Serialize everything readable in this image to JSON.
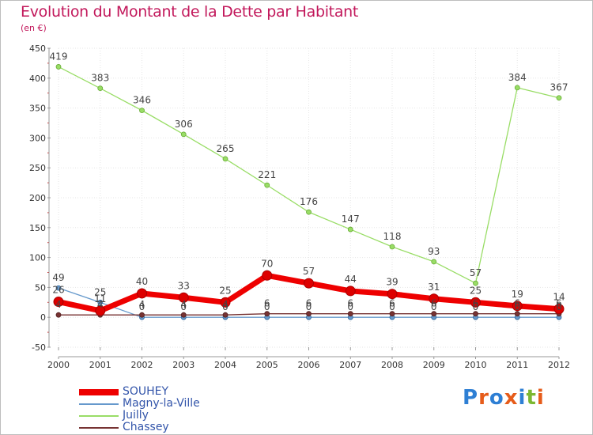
{
  "title": "Evolution du Montant de la Dette par Habitant",
  "subtitle": "(en €)",
  "logo": {
    "text": "Proxiti",
    "letters": [
      "P",
      "r",
      "o",
      "x",
      "i",
      "t",
      "i"
    ],
    "colors": [
      "#2e7fd4",
      "#e65c1a",
      "#2e7fd4",
      "#e65c1a",
      "#2e7fd4",
      "#7cb832",
      "#e65c1a"
    ]
  },
  "chart_data": {
    "type": "line",
    "title": "Evolution du Montant de la Dette par Habitant",
    "ylabel": "(en €)",
    "xlabel": "",
    "ylim": [
      -50,
      450
    ],
    "yticks": [
      -50,
      0,
      50,
      100,
      150,
      200,
      250,
      300,
      350,
      400,
      450
    ],
    "categories": [
      "2000",
      "2001",
      "2002",
      "2003",
      "2004",
      "2005",
      "2006",
      "2007",
      "2008",
      "2009",
      "2010",
      "2011",
      "2012"
    ],
    "series": [
      {
        "name": "SOUHEY",
        "color": "#ee0000",
        "values": [
          26,
          11,
          40,
          33,
          25,
          70,
          57,
          44,
          39,
          31,
          25,
          19,
          14
        ],
        "labels": [
          "26",
          "11",
          "40",
          "33",
          "25",
          "70",
          "57",
          "44",
          "39",
          "31",
          "25",
          "19",
          "14"
        ]
      },
      {
        "name": "Magny-la-Ville",
        "color": "#6699cc",
        "values": [
          49,
          25,
          0,
          0,
          0,
          0,
          0,
          0,
          0,
          0,
          0,
          0,
          0
        ],
        "labels": [
          "49",
          "25",
          "0",
          "0",
          "0",
          "0",
          "0",
          "0",
          "0",
          "0",
          "0",
          "0",
          "0"
        ]
      },
      {
        "name": "Juilly",
        "color": "#99dd66",
        "values": [
          419,
          383,
          346,
          306,
          265,
          221,
          176,
          147,
          118,
          93,
          57,
          384,
          367
        ],
        "labels": [
          "419",
          "383",
          "346",
          "306",
          "265",
          "221",
          "176",
          "147",
          "118",
          "93",
          "57",
          "384",
          "367"
        ]
      },
      {
        "name": "Chassey",
        "color": "#773333",
        "values": [
          4,
          4,
          4,
          4,
          4,
          6,
          6,
          6,
          6,
          6,
          6,
          6,
          6
        ],
        "labels": [
          "4",
          "4",
          "4",
          "4",
          "4",
          "6",
          "6",
          "6",
          "6",
          "6",
          "6",
          "6",
          "6"
        ]
      }
    ]
  }
}
